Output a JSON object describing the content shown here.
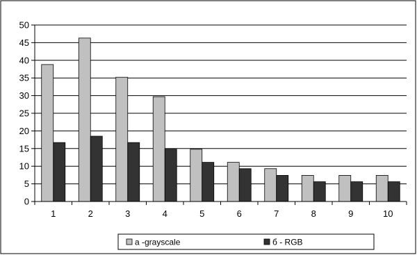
{
  "chart_data": {
    "type": "bar",
    "categories": [
      "1",
      "2",
      "3",
      "4",
      "5",
      "6",
      "7",
      "8",
      "9",
      "10"
    ],
    "series": [
      {
        "name": "a -grayscale",
        "color": "#c0c0c0",
        "values": [
          38.8,
          46.3,
          35.2,
          29.7,
          14.8,
          11.1,
          9.3,
          7.4,
          7.4,
          7.4
        ]
      },
      {
        "name": "б - RGB",
        "color": "#333333",
        "values": [
          16.7,
          18.5,
          16.7,
          14.8,
          11.1,
          9.3,
          7.4,
          5.6,
          5.6,
          5.6
        ]
      }
    ],
    "ylim": [
      0,
      50
    ],
    "yticks": [
      0,
      5,
      10,
      15,
      20,
      25,
      30,
      35,
      40,
      45,
      50
    ],
    "grid": true,
    "legend": "bottom",
    "title": "",
    "xlabel": "",
    "ylabel": ""
  }
}
